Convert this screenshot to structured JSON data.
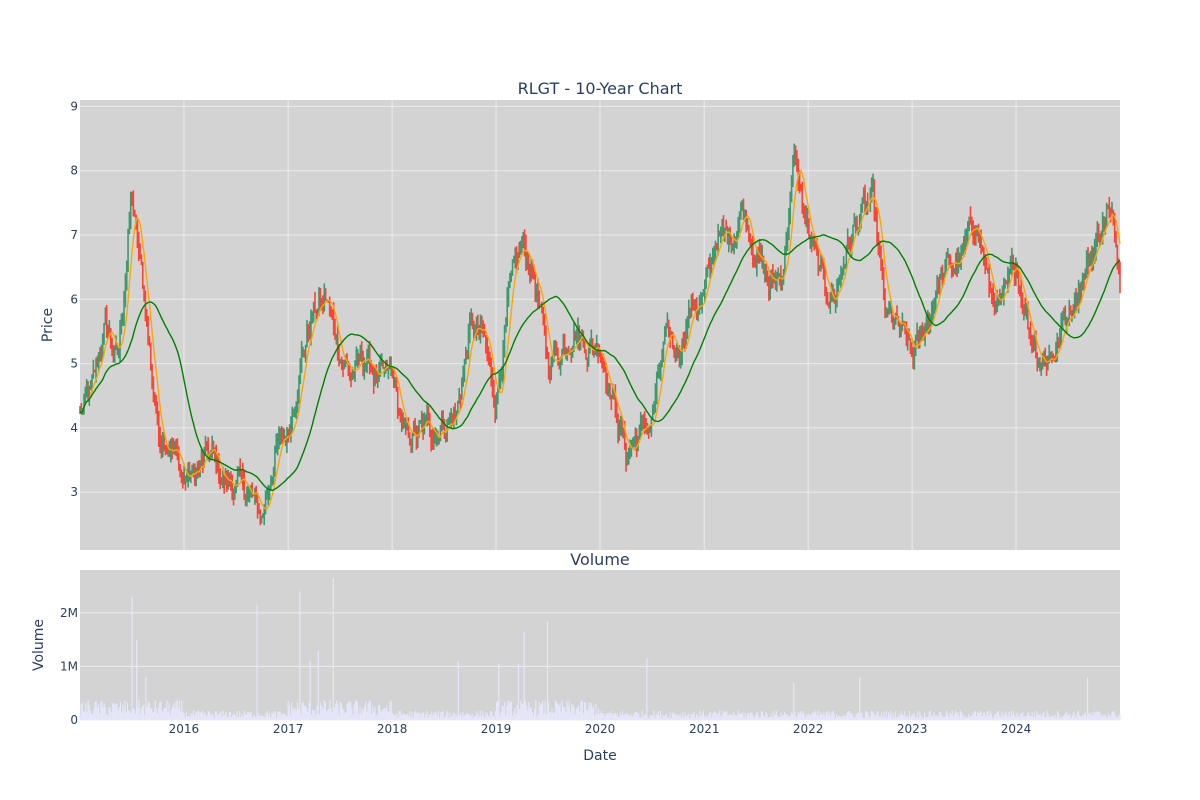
{
  "chart_data": [
    {
      "type": "candlestick",
      "title": "RLGT - 10-Year Chart",
      "ylabel": "Price",
      "xlim": [
        "2015-01-01",
        "2024-12-31"
      ],
      "ylim": [
        2.1,
        9.1
      ],
      "yticks": [
        3,
        4,
        5,
        6,
        7,
        8,
        9
      ],
      "grid": true,
      "colors": {
        "plot_bg": "#d3d3d3",
        "increasing": "#3d9970",
        "decreasing": "#ff4136",
        "ma_short": "#ffa500",
        "ma_long": "#008000",
        "grid": "#ebebeb"
      },
      "price_path": [
        [
          "2015-01-01",
          4.2
        ],
        [
          "2015-02-15",
          4.6
        ],
        [
          "2015-04-01",
          5.6
        ],
        [
          "2015-05-15",
          5.0
        ],
        [
          "2015-07-01",
          7.6
        ],
        [
          "2015-08-15",
          6.0
        ],
        [
          "2015-10-01",
          4.0
        ],
        [
          "2015-11-15",
          3.8
        ],
        [
          "2016-01-01",
          3.2
        ],
        [
          "2016-02-15",
          3.3
        ],
        [
          "2016-04-01",
          3.6
        ],
        [
          "2016-05-15",
          3.2
        ],
        [
          "2016-07-01",
          3.1
        ],
        [
          "2016-08-15",
          3.0
        ],
        [
          "2016-10-01",
          2.6
        ],
        [
          "2016-11-15",
          3.6
        ],
        [
          "2017-01-01",
          3.9
        ],
        [
          "2017-02-15",
          5.1
        ],
        [
          "2017-04-01",
          5.8
        ],
        [
          "2017-05-15",
          6.0
        ],
        [
          "2017-07-01",
          5.2
        ],
        [
          "2017-08-15",
          4.8
        ],
        [
          "2017-10-01",
          5.1
        ],
        [
          "2017-11-15",
          4.7
        ],
        [
          "2018-01-01",
          4.8
        ],
        [
          "2018-02-15",
          3.8
        ],
        [
          "2018-04-01",
          3.9
        ],
        [
          "2018-05-15",
          4.0
        ],
        [
          "2018-07-01",
          4.1
        ],
        [
          "2018-08-15",
          4.2
        ],
        [
          "2018-10-01",
          5.5
        ],
        [
          "2018-11-15",
          5.4
        ],
        [
          "2019-01-01",
          4.4
        ],
        [
          "2019-02-15",
          6.0
        ],
        [
          "2019-04-01",
          6.8
        ],
        [
          "2019-05-15",
          6.4
        ],
        [
          "2019-07-01",
          5.0
        ],
        [
          "2019-08-15",
          5.2
        ],
        [
          "2019-10-01",
          5.6
        ],
        [
          "2019-11-15",
          5.3
        ],
        [
          "2020-01-01",
          5.3
        ],
        [
          "2020-02-15",
          4.5
        ],
        [
          "2020-04-01",
          3.6
        ],
        [
          "2020-05-15",
          3.9
        ],
        [
          "2020-07-01",
          4.1
        ],
        [
          "2020-08-15",
          5.3
        ],
        [
          "2020-10-01",
          5.2
        ],
        [
          "2020-11-15",
          5.9
        ],
        [
          "2021-01-01",
          6.0
        ],
        [
          "2021-02-15",
          7.0
        ],
        [
          "2021-04-01",
          6.9
        ],
        [
          "2021-05-15",
          7.5
        ],
        [
          "2021-07-01",
          6.8
        ],
        [
          "2021-08-15",
          6.2
        ],
        [
          "2021-10-01",
          6.4
        ],
        [
          "2021-11-15",
          8.2
        ],
        [
          "2022-01-01",
          7.0
        ],
        [
          "2022-02-15",
          6.3
        ],
        [
          "2022-04-01",
          6.0
        ],
        [
          "2022-05-15",
          6.8
        ],
        [
          "2022-07-01",
          7.3
        ],
        [
          "2022-08-15",
          7.5
        ],
        [
          "2022-10-01",
          5.7
        ],
        [
          "2022-11-15",
          5.5
        ],
        [
          "2023-01-01",
          5.1
        ],
        [
          "2023-02-15",
          5.5
        ],
        [
          "2023-04-01",
          6.3
        ],
        [
          "2023-05-15",
          6.5
        ],
        [
          "2023-07-01",
          6.7
        ],
        [
          "2023-08-15",
          7.3
        ],
        [
          "2023-10-01",
          6.1
        ],
        [
          "2023-11-15",
          5.8
        ],
        [
          "2024-01-01",
          6.6
        ],
        [
          "2024-02-15",
          5.6
        ],
        [
          "2024-04-01",
          5.1
        ],
        [
          "2024-05-15",
          5.2
        ],
        [
          "2024-07-01",
          5.8
        ],
        [
          "2024-08-15",
          6.3
        ],
        [
          "2024-10-01",
          6.8
        ],
        [
          "2024-11-15",
          7.4
        ],
        [
          "2024-12-31",
          6.6
        ]
      ]
    },
    {
      "type": "bar",
      "title": "Volume",
      "xlabel": "Date",
      "ylabel": "Volume",
      "ylim": [
        0,
        2800000
      ],
      "yticks": [
        0,
        1000000,
        2000000
      ],
      "ytick_labels": [
        "0",
        "1M",
        "2M"
      ],
      "xticks": [
        "2016-01-01",
        "2017-01-01",
        "2018-01-01",
        "2019-01-01",
        "2020-01-01",
        "2021-01-01",
        "2022-01-01",
        "2023-01-01",
        "2024-01-01"
      ],
      "xtick_labels": [
        "2016",
        "2017",
        "2018",
        "2019",
        "2020",
        "2021",
        "2022",
        "2023",
        "2024"
      ],
      "grid": true,
      "colors": {
        "plot_bg": "#d3d3d3",
        "bars": "#e6e6fa",
        "grid": "#ebebeb"
      },
      "volume_spikes": [
        [
          "2015-07-01",
          2300000
        ],
        [
          "2015-07-20",
          1500000
        ],
        [
          "2015-08-20",
          800000
        ],
        [
          "2016-09-15",
          2150000
        ],
        [
          "2017-02-10",
          2400000
        ],
        [
          "2017-03-20",
          1100000
        ],
        [
          "2017-04-15",
          1300000
        ],
        [
          "2017-06-10",
          2650000
        ],
        [
          "2018-08-20",
          1100000
        ],
        [
          "2019-01-10",
          1050000
        ],
        [
          "2019-03-20",
          1050000
        ],
        [
          "2019-04-10",
          1650000
        ],
        [
          "2019-07-01",
          1850000
        ],
        [
          "2020-06-15",
          1150000
        ],
        [
          "2021-11-10",
          700000
        ],
        [
          "2022-07-01",
          800000
        ],
        [
          "2024-09-10",
          800000
        ]
      ]
    }
  ]
}
